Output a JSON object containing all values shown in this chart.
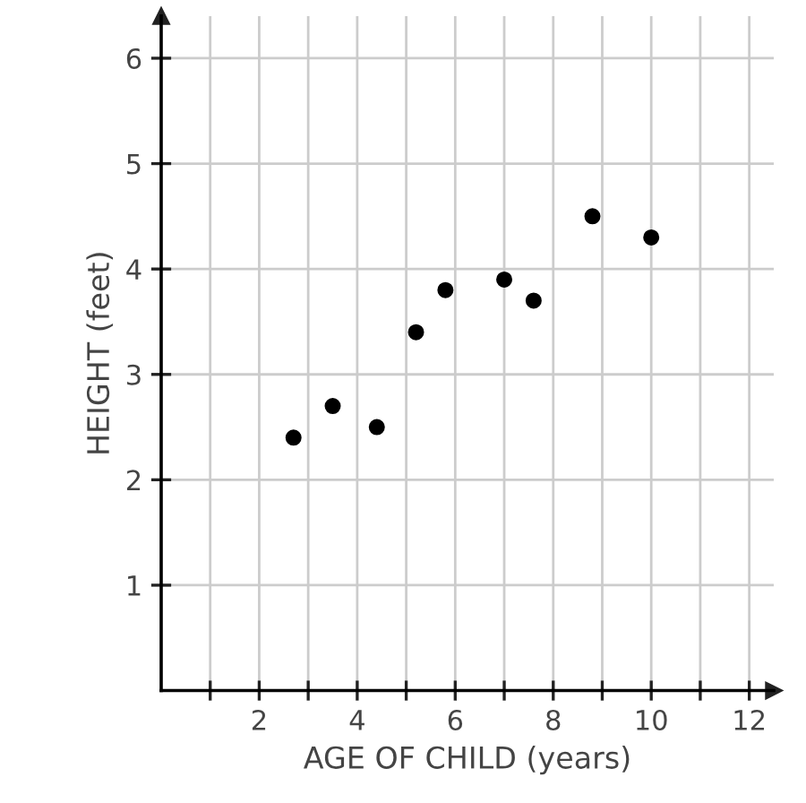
{
  "chart_data": {
    "type": "scatter",
    "xlabel": "AGE OF CHILD (years)",
    "ylabel": "HEIGHT (feet)",
    "x": [
      2.7,
      3.5,
      4.4,
      5.2,
      5.8,
      7.0,
      7.6,
      8.8,
      10.0
    ],
    "values": [
      2.4,
      2.7,
      2.5,
      3.4,
      3.8,
      3.9,
      3.7,
      4.5,
      4.3
    ],
    "color": "#000000",
    "marker": "circle",
    "grid": true,
    "xlim": [
      0,
      12.5
    ],
    "ylim": [
      0,
      6.4
    ],
    "xticks": [
      {
        "value": 1,
        "label": null
      },
      2,
      {
        "value": 3,
        "label": null
      },
      4,
      {
        "value": 5,
        "label": null
      },
      6,
      {
        "value": 7,
        "label": null
      },
      8,
      {
        "value": 9,
        "label": null
      },
      10,
      {
        "value": 11,
        "label": null
      },
      12
    ],
    "yticks": [
      1,
      2,
      3,
      4,
      5,
      6
    ]
  }
}
